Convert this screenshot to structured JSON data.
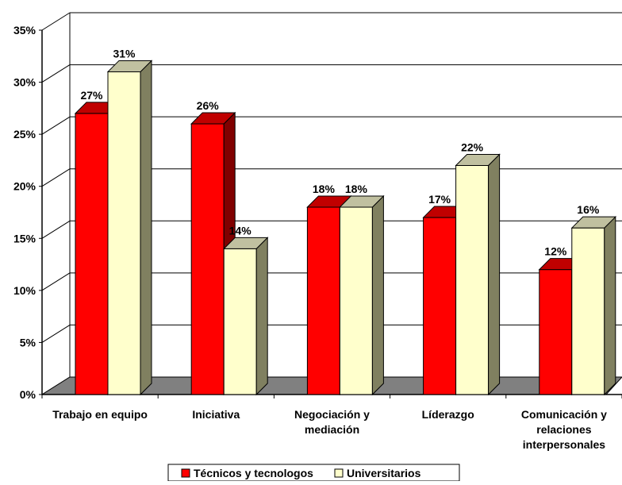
{
  "chart_data": {
    "type": "bar",
    "title": "",
    "xlabel": "",
    "ylabel": "",
    "ylim": [
      0,
      35
    ],
    "y_ticks": [
      "0%",
      "5%",
      "10%",
      "15%",
      "20%",
      "25%",
      "30%",
      "35%"
    ],
    "y_tick_values": [
      0,
      5,
      10,
      15,
      20,
      25,
      30,
      35
    ],
    "grid": true,
    "three_d": true,
    "legend_position": "bottom",
    "categories": [
      [
        "Trabajo en equipo"
      ],
      [
        "Iniciativa"
      ],
      [
        "Negociación y",
        "mediación"
      ],
      [
        "Líderazgo"
      ],
      [
        "Comunicación y",
        "relaciones",
        "interpersonales"
      ]
    ],
    "series": [
      {
        "name": "Técnicos y tecnologos",
        "values": [
          27,
          26,
          18,
          17,
          12
        ],
        "value_labels": [
          "27%",
          "26%",
          "18%",
          "17%",
          "12%"
        ],
        "color": "#ff0000",
        "side_color": "#800000",
        "top_color": "#c00000"
      },
      {
        "name": "Universitarios",
        "values": [
          31,
          14,
          18,
          22,
          16
        ],
        "value_labels": [
          "31%",
          "14%",
          "18%",
          "22%",
          "16%"
        ],
        "color": "#ffffcc",
        "side_color": "#808060",
        "top_color": "#c0c0a0"
      }
    ],
    "floor_color": "#808080"
  }
}
